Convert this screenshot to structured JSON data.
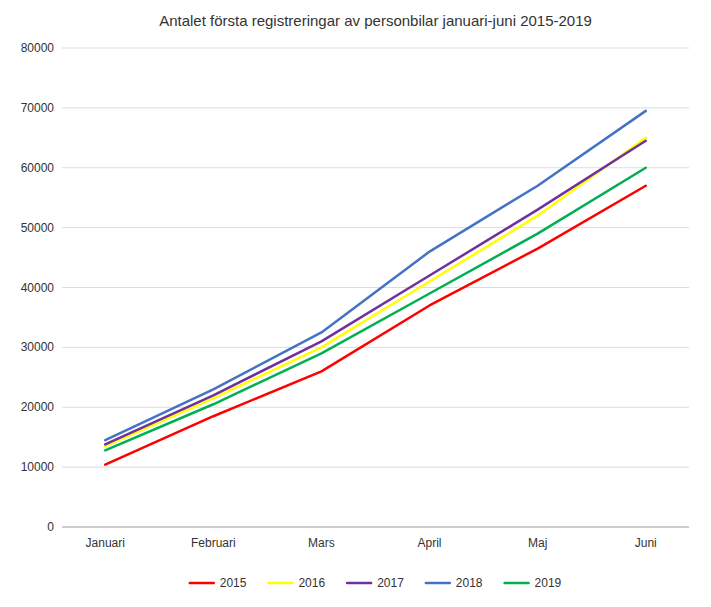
{
  "chart_data": {
    "type": "line",
    "title": "Antalet första registreringar av personbilar januari-juni 2015-2019",
    "categories": [
      "Januari",
      "Februari",
      "Mars",
      "April",
      "Maj",
      "Juni"
    ],
    "series": [
      {
        "name": "2015",
        "color": "#FF0000",
        "values": [
          10400,
          18500,
          26000,
          37000,
          46500,
          57000
        ]
      },
      {
        "name": "2016",
        "color": "#FFFF00",
        "values": [
          13500,
          21500,
          30000,
          41000,
          52000,
          65000
        ]
      },
      {
        "name": "2017",
        "color": "#7030A0",
        "values": [
          13800,
          22000,
          31000,
          42000,
          53000,
          64500
        ]
      },
      {
        "name": "2018",
        "color": "#4472C4",
        "values": [
          14500,
          23000,
          32500,
          46000,
          57000,
          69500
        ]
      },
      {
        "name": "2019",
        "color": "#00B050",
        "values": [
          12800,
          20500,
          29000,
          39000,
          49000,
          60000
        ]
      }
    ],
    "ylim": [
      0,
      80000
    ],
    "yticks": [
      0,
      10000,
      20000,
      30000,
      40000,
      50000,
      60000,
      70000,
      80000
    ],
    "grid": true,
    "legend": "bottom"
  }
}
